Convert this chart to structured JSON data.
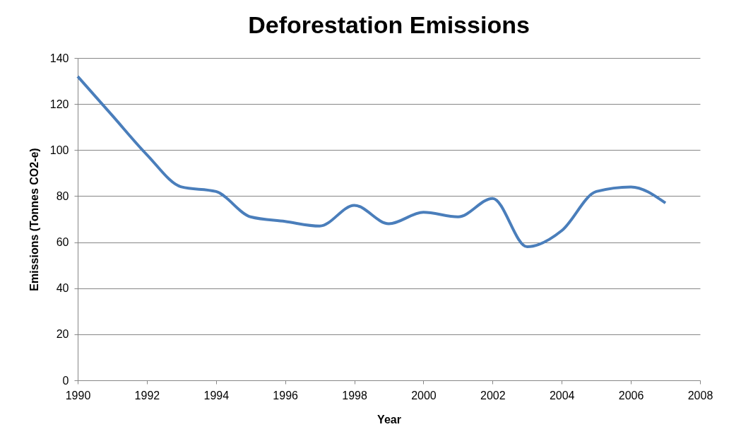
{
  "chart_data": {
    "type": "line",
    "title": "Deforestation Emissions",
    "xlabel": "Year",
    "ylabel": "Emissions (Tonnes CO2-e)",
    "x": [
      1990,
      1991,
      1992,
      1993,
      1994,
      1995,
      1996,
      1997,
      1998,
      1999,
      2000,
      2001,
      2002,
      2003,
      2004,
      2005,
      2006,
      2007
    ],
    "series": [
      {
        "color": "#4a7ebb",
        "values": [
          132,
          115,
          98,
          84,
          82,
          71,
          69,
          67,
          76,
          68,
          73,
          71,
          79,
          58,
          65,
          82,
          84,
          77
        ]
      }
    ],
    "xlim": [
      1990,
      2008
    ],
    "xticks": [
      1990,
      1992,
      1994,
      1996,
      1998,
      2000,
      2002,
      2004,
      2006,
      2008
    ],
    "ylim": [
      0,
      140
    ],
    "yticks": [
      0,
      20,
      40,
      60,
      80,
      100,
      120,
      140
    ],
    "grid": "y",
    "legend": false,
    "marker": "none",
    "line_style": "solid"
  }
}
